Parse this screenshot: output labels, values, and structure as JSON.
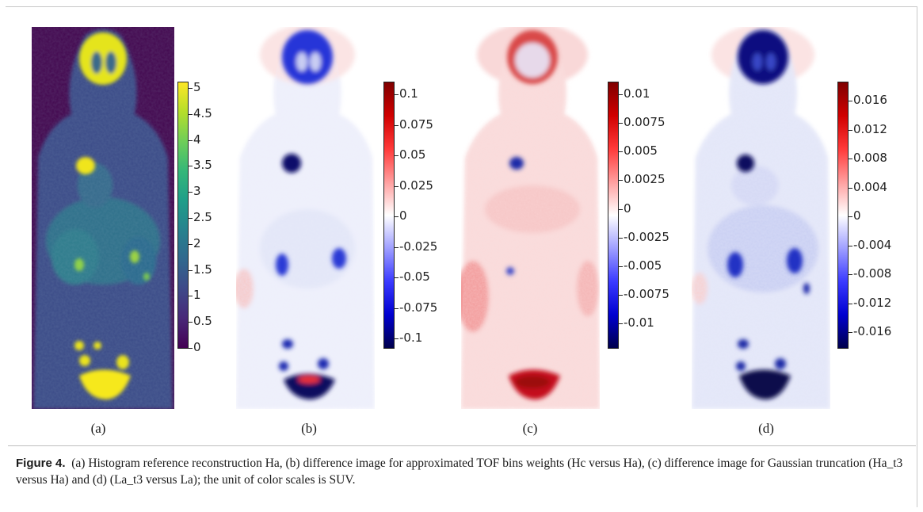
{
  "panels": [
    {
      "id": "a",
      "label": "(a)",
      "colormap": "viridis",
      "ticks": [
        "5",
        "4.5",
        "4",
        "3.5",
        "3",
        "2.5",
        "2",
        "1.5",
        "1",
        "0.5",
        "0"
      ]
    },
    {
      "id": "b",
      "label": "(b)",
      "colormap": "seismic",
      "ticks": [
        "0.1",
        "0.075",
        "0.05",
        "0.025",
        "0",
        "-0.025",
        "-0.05",
        "-0.075",
        "-0.1"
      ]
    },
    {
      "id": "c",
      "label": "(c)",
      "colormap": "seismic",
      "ticks": [
        "0.01",
        "0.0075",
        "0.005",
        "0.0025",
        "0",
        "-0.0025",
        "-0.005",
        "-0.0075",
        "-0.01"
      ]
    },
    {
      "id": "d",
      "label": "(d)",
      "colormap": "seismic",
      "ticks": [
        "0.016",
        "0.012",
        "0.008",
        "0.004",
        "0",
        "-0.004",
        "-0.008",
        "-0.012",
        "-0.016"
      ]
    }
  ],
  "caption": {
    "prefix": "Figure 4.",
    "text": "(a) Histogram reference reconstruction Ha, (b) difference image for approximated TOF bins weights (Hc versus Ha), (c) difference image for Gaussian truncation (Ha_t3 versus Ha) and (d) (La_t3 versus La); the unit of color scales is SUV."
  }
}
